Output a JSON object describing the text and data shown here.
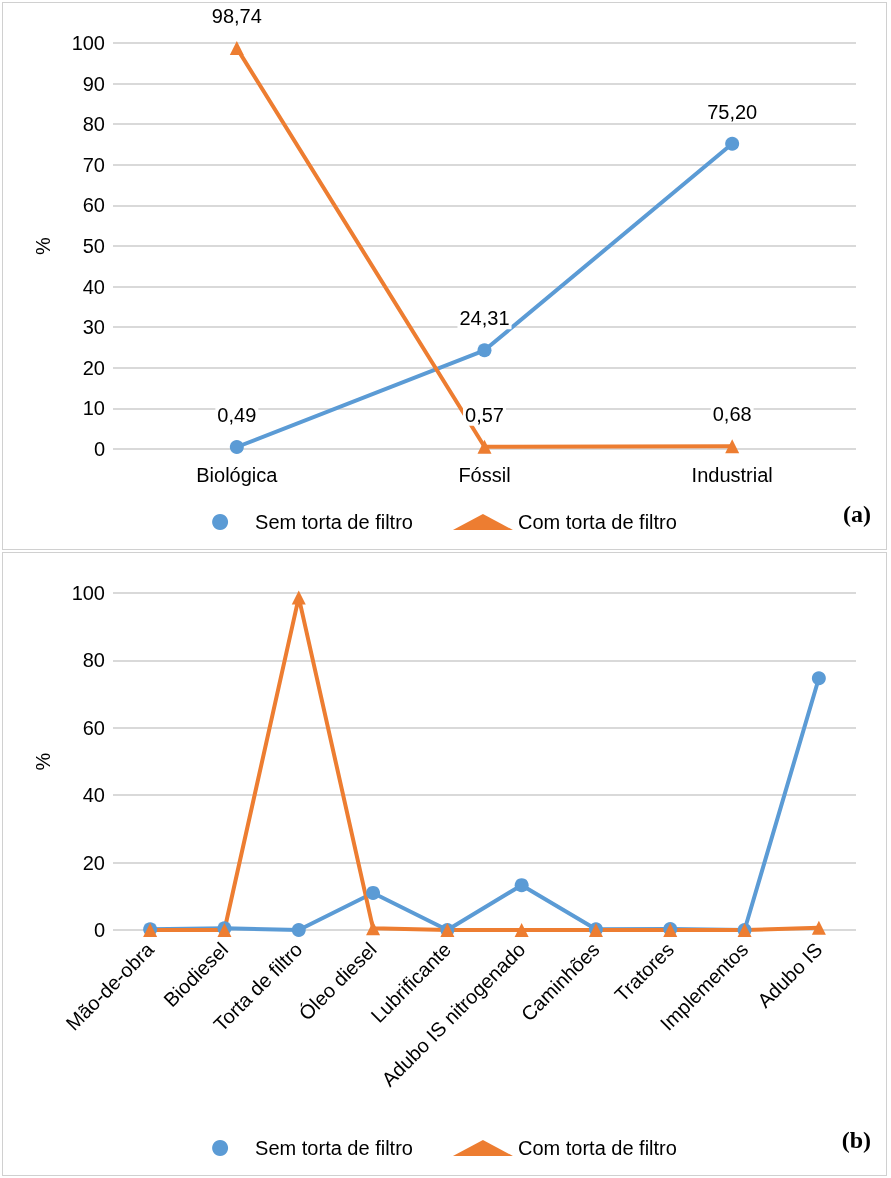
{
  "chart_data": [
    {
      "type": "line",
      "categories": [
        "Biológica",
        "Fóssil",
        "Industrial"
      ],
      "ylabel": "%",
      "ylim": [
        0,
        100
      ],
      "yticks": [
        0,
        10,
        20,
        30,
        40,
        50,
        60,
        70,
        80,
        90,
        100
      ],
      "grid": "y",
      "legend": "bottom",
      "annotations": [
        "(a)"
      ],
      "series": [
        {
          "name": "Sem torta de filtro",
          "color": "#5b9bd5",
          "marker": "circle",
          "values": [
            0.49,
            24.31,
            75.2
          ],
          "value_labels": [
            "0,49",
            "24,31",
            "75,20"
          ]
        },
        {
          "name": "Com torta de filtro",
          "color": "#ed7d31",
          "marker": "triangle",
          "values": [
            98.74,
            0.57,
            0.68
          ],
          "value_labels": [
            "98,74",
            "0,57",
            "0,68"
          ]
        }
      ]
    },
    {
      "type": "line",
      "categories": [
        "Mão-de-obra",
        "Biodiesel",
        "Torta de filtro",
        "Óleo diesel",
        "Lubrificante",
        "Adubo IS nitrogenado",
        "Caminhões",
        "Tratores",
        "Implementos",
        "Adubo IS"
      ],
      "ylabel": "%",
      "ylim": [
        0,
        100
      ],
      "yticks": [
        0,
        20,
        40,
        60,
        80,
        100
      ],
      "grid": "y",
      "legend": "bottom",
      "annotations": [
        "(b)"
      ],
      "series": [
        {
          "name": "Sem torta de filtro",
          "color": "#5b9bd5",
          "marker": "circle",
          "values": [
            0.2,
            0.5,
            0,
            11,
            0,
            13.3,
            0.2,
            0.3,
            0,
            74.7
          ]
        },
        {
          "name": "Com torta de filtro",
          "color": "#ed7d31",
          "marker": "triangle",
          "values": [
            0,
            0,
            98.7,
            0.5,
            0,
            0,
            0,
            0,
            0,
            0.7
          ]
        }
      ]
    }
  ]
}
